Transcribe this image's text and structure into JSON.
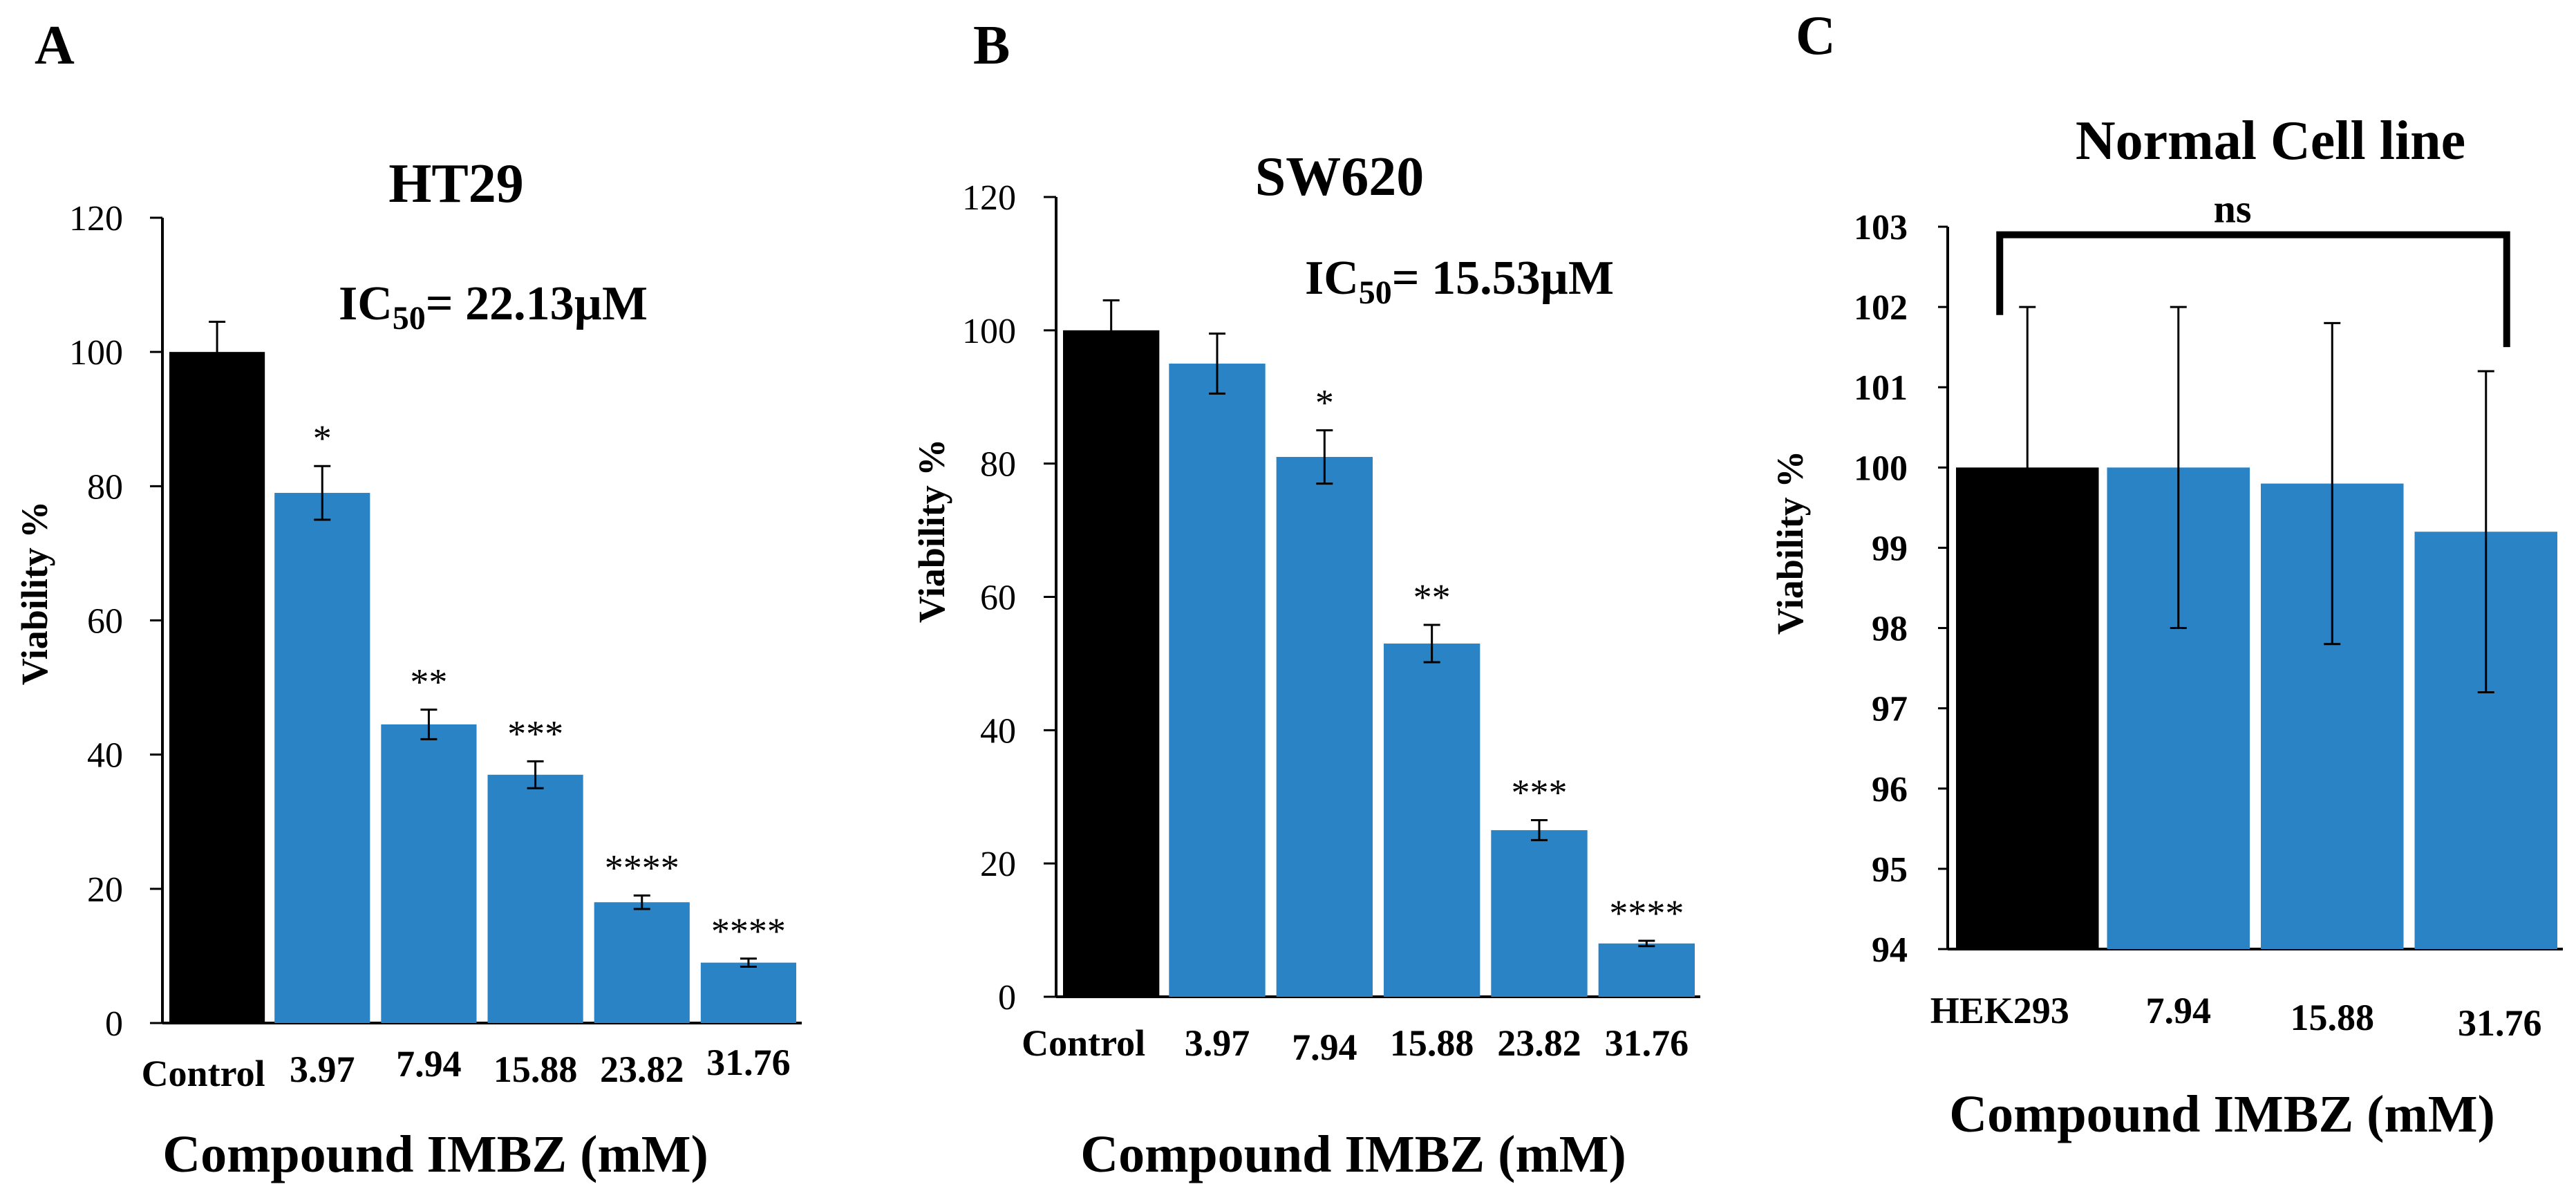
{
  "chart_data": [
    {
      "panel": "A",
      "type": "bar",
      "title": "HT29",
      "annotation": {
        "prefix": "IC",
        "sub": "50",
        "suffix": "= 22.13µM"
      },
      "xlabel": "Compound IMBZ (mM)",
      "ylabel": "Viability %",
      "ylim": [
        0,
        120
      ],
      "yticks": [
        0,
        20,
        40,
        60,
        80,
        100,
        120
      ],
      "categories": [
        "Control",
        "3.97",
        "7.94",
        "15.88",
        "23.82",
        "31.76"
      ],
      "values": [
        100,
        79,
        44.5,
        37,
        18,
        9
      ],
      "errors": [
        4.5,
        4,
        2.2,
        2,
        1,
        0.6
      ],
      "significance": [
        "",
        "*",
        "**",
        "***",
        "****",
        "****"
      ],
      "colors": [
        "#000000",
        "#2A83C4",
        "#2A83C4",
        "#2A83C4",
        "#2A83C4",
        "#2A83C4"
      ]
    },
    {
      "panel": "B",
      "type": "bar",
      "title": "SW620",
      "annotation": {
        "prefix": "IC",
        "sub": "50",
        "suffix": "= 15.53µM"
      },
      "xlabel": "Compound IMBZ (mM)",
      "ylabel": "Viability %",
      "ylim": [
        0,
        120
      ],
      "yticks": [
        0,
        20,
        40,
        60,
        80,
        100,
        120
      ],
      "categories": [
        "Control",
        "3.97",
        "7.94",
        "15.88",
        "23.82",
        "31.76"
      ],
      "values": [
        100,
        95,
        81,
        53,
        25,
        8
      ],
      "errors": [
        4.5,
        4.5,
        4,
        2.8,
        1.5,
        0.4
      ],
      "significance": [
        "",
        "",
        "*",
        "**",
        "***",
        "****"
      ],
      "colors": [
        "#000000",
        "#2A83C4",
        "#2A83C4",
        "#2A83C4",
        "#2A83C4",
        "#2A83C4"
      ]
    },
    {
      "panel": "C",
      "type": "bar",
      "title": "Normal Cell line",
      "bracket_label": "ns",
      "xlabel": "Compound IMBZ (mM)",
      "ylabel": "Viability %",
      "ylim": [
        94,
        103
      ],
      "yticks": [
        94,
        95,
        96,
        97,
        98,
        99,
        100,
        101,
        102,
        103
      ],
      "categories": [
        "HEK293",
        "7.94",
        "15.88",
        "31.76"
      ],
      "values": [
        100,
        100,
        99.8,
        99.2
      ],
      "errors": [
        2,
        2,
        2,
        2
      ],
      "significance": [
        "",
        "",
        "",
        ""
      ],
      "colors": [
        "#000000",
        "#2A83C4",
        "#2A83C4",
        "#2A83C4"
      ]
    }
  ]
}
